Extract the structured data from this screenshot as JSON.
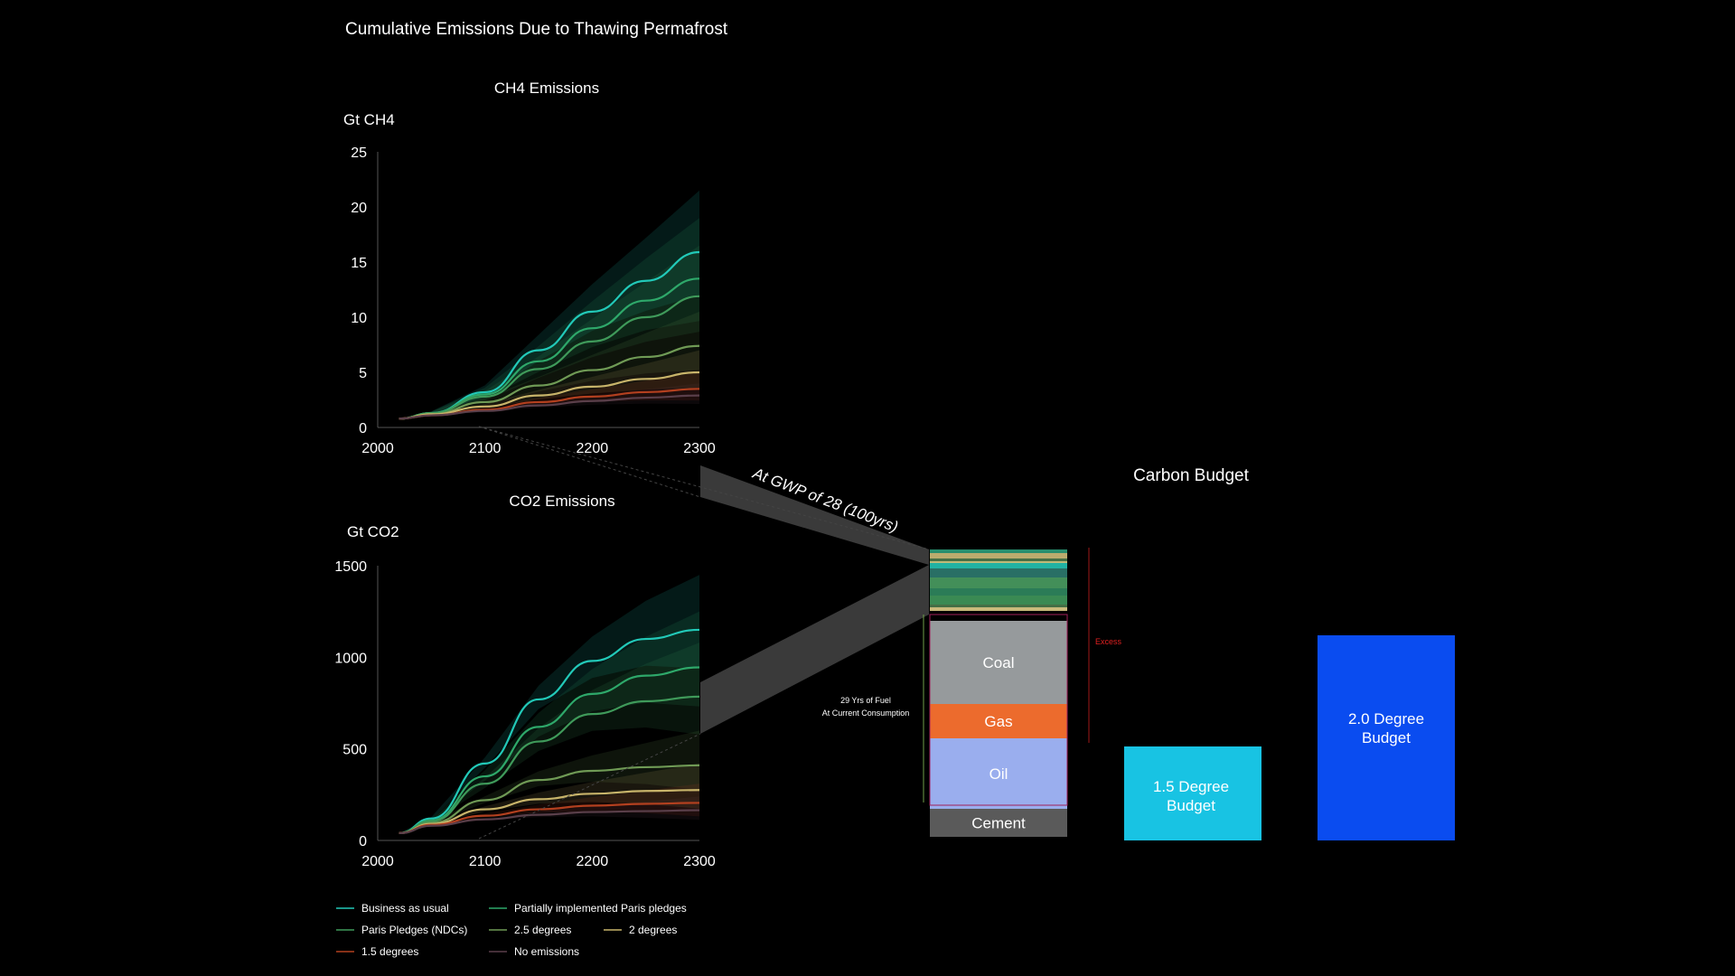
{
  "title": "Cumulative Emissions Due to Thawing Permafrost",
  "colors": {
    "Business as usual": "#22c9b8",
    "Partially implemented Paris pledges": "#2ea86a",
    "Paris Pledges (NDCs)": "#3f9a5a",
    "2.5 degrees": "#6f9a55",
    "2 degrees": "#c8b46a",
    "1.5 degrees": "#b3401f",
    "No emissions": "#5a3f4a"
  },
  "chart_data": [
    {
      "type": "area",
      "title": "CH4 Emissions",
      "ylabel": "Gt CH4",
      "xlim": [
        2000,
        2300
      ],
      "ylim": [
        0,
        25
      ],
      "xticks": [
        2000,
        2100,
        2200,
        2300
      ],
      "yticks": [
        0,
        5,
        10,
        15,
        20,
        25
      ],
      "x": [
        2020,
        2050,
        2100,
        2150,
        2200,
        2250,
        2300
      ],
      "series": [
        {
          "name": "Business as usual",
          "values": [
            0.8,
            1.3,
            3.2,
            7.0,
            10.5,
            13.3,
            15.9
          ],
          "upper": 21.5
        },
        {
          "name": "Partially implemented Paris pledges",
          "values": [
            0.8,
            1.3,
            3.0,
            6.0,
            9.0,
            11.5,
            13.5
          ],
          "upper": 19.0
        },
        {
          "name": "Paris Pledges (NDCs)",
          "values": [
            0.8,
            1.3,
            2.8,
            5.3,
            7.8,
            10.0,
            11.9
          ],
          "upper": 16.5
        },
        {
          "name": "2.5 degrees",
          "values": [
            0.8,
            1.2,
            2.3,
            3.8,
            5.2,
            6.4,
            7.4
          ],
          "upper": 10.5
        },
        {
          "name": "2 degrees",
          "values": [
            0.8,
            1.2,
            1.9,
            2.9,
            3.7,
            4.4,
            5.0
          ],
          "upper": 7.0
        },
        {
          "name": "1.5 degrees",
          "values": [
            0.8,
            1.1,
            1.6,
            2.3,
            2.8,
            3.2,
            3.5
          ],
          "upper": 5.0
        },
        {
          "name": "No emissions",
          "values": [
            0.8,
            1.1,
            1.5,
            2.0,
            2.4,
            2.7,
            2.9
          ],
          "upper": 4.0
        }
      ]
    },
    {
      "type": "area",
      "title": "CO2 Emissions",
      "ylabel": "Gt CO2",
      "xlim": [
        2000,
        2300
      ],
      "ylim": [
        0,
        1500
      ],
      "xticks": [
        2000,
        2100,
        2200,
        2300
      ],
      "yticks": [
        0,
        500,
        1000,
        1500
      ],
      "x": [
        2020,
        2050,
        2100,
        2150,
        2200,
        2250,
        2300
      ],
      "series": [
        {
          "name": "Business as usual",
          "values": [
            40,
            120,
            420,
            770,
            980,
            1100,
            1150
          ],
          "upper": 1450
        },
        {
          "name": "Partially implemented Paris pledges",
          "values": [
            40,
            110,
            350,
            620,
            800,
            900,
            945
          ],
          "upper": 1250
        },
        {
          "name": "Paris Pledges (NDCs)",
          "values": [
            40,
            105,
            310,
            540,
            690,
            760,
            785
          ],
          "upper": 1080
        },
        {
          "name": "2.5 degrees",
          "values": [
            40,
            95,
            220,
            330,
            380,
            400,
            410
          ],
          "upper": 600
        },
        {
          "name": "2 degrees",
          "values": [
            40,
            90,
            170,
            225,
            255,
            270,
            275
          ],
          "upper": 420
        },
        {
          "name": "1.5 degrees",
          "values": [
            40,
            85,
            135,
            170,
            190,
            200,
            205
          ],
          "upper": 310
        },
        {
          "name": "No emissions",
          "values": [
            40,
            80,
            115,
            140,
            155,
            160,
            165
          ],
          "upper": 240
        }
      ]
    }
  ],
  "connector_label": "At GWP of 28 (100yrs)",
  "budget": {
    "title": "Carbon Budget",
    "fuel_note_line1": "29 Yrs of Fuel",
    "fuel_note_line2": "At Current Consumption",
    "excess_label": "Excess",
    "stack": [
      {
        "label": "Cement",
        "value": 35,
        "color": "#5a5a5a"
      },
      {
        "label": "Oil",
        "value": 78,
        "color": "#9aaeee"
      },
      {
        "label": "Gas",
        "value": 38,
        "color": "#ec6b2d"
      },
      {
        "label": "Coal",
        "value": 92,
        "color": "#969a9c"
      }
    ],
    "permafrost_layers": [
      "#e6d28a",
      "#4a7a4a",
      "#3f9a5a",
      "#2e8a5f",
      "#4aa062",
      "#2b7a70",
      "#22c9b8",
      "#4f7a4a",
      "#d7c27a",
      "#2aa07a"
    ],
    "budget_1_5": {
      "line1": "1.5 Degree",
      "line2": "Budget",
      "value": 105,
      "color": "#18c3e3"
    },
    "budget_2_0": {
      "line1": "2.0 Degree",
      "line2": "Budget",
      "value": 228,
      "color": "#0a4cf0"
    }
  },
  "legend": [
    {
      "label": "Business as usual"
    },
    {
      "label": "Partially implemented Paris pledges"
    },
    {
      "label": "Paris Pledges (NDCs)"
    },
    {
      "label": "2.5 degrees"
    },
    {
      "label": "2 degrees"
    },
    {
      "label": "1.5 degrees"
    },
    {
      "label": "No emissions"
    }
  ]
}
